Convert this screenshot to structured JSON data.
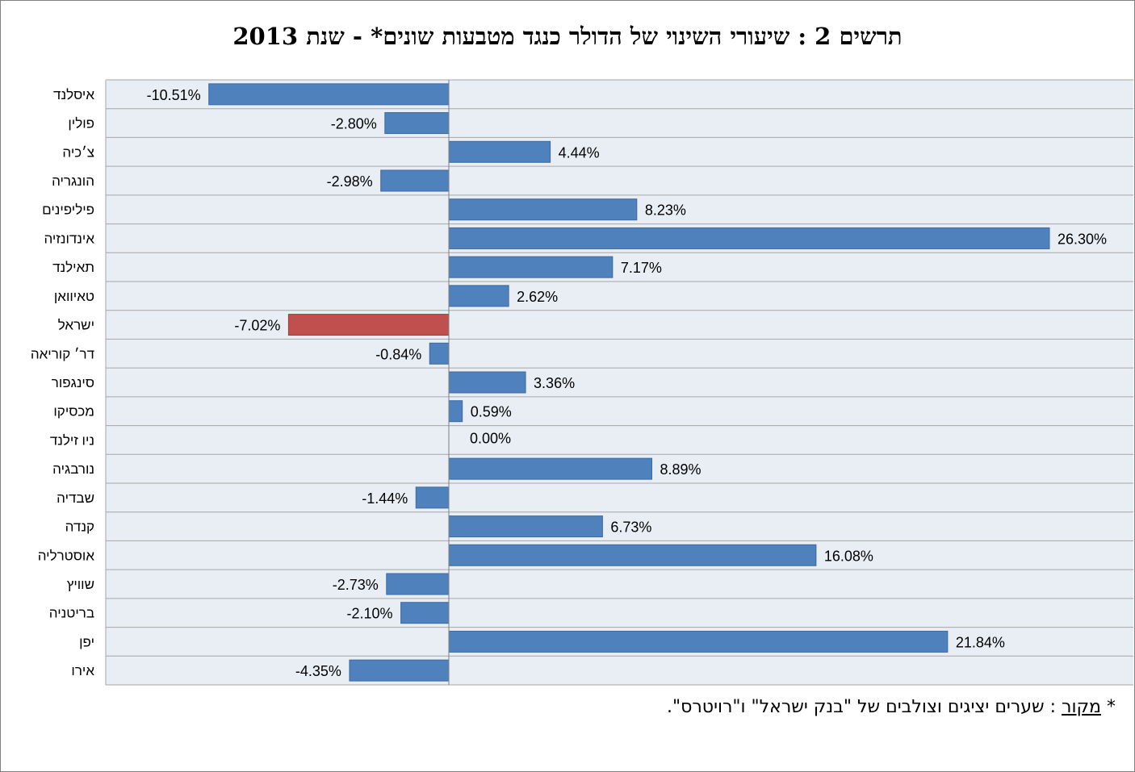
{
  "chart_data": {
    "type": "bar",
    "orientation": "horizontal",
    "title": "תרשים 2 : שיעורי השינוי של הדולר כנגד מטבעות שונים* - שנת 2013",
    "categories": [
      "איסלנד",
      "פולין",
      "צ׳כיה",
      "הונגריה",
      "פיליפינים",
      "אינדונזיה",
      "תאילנד",
      "טאיוואן",
      "ישראל",
      "דר׳ קוריאה",
      "סינגפור",
      "מכסיקו",
      "ניו זילנד",
      "נורבגיה",
      "שבדיה",
      "קנדה",
      "אוסטרליה",
      "שוויץ",
      "בריטניה",
      "יפן",
      "אירו"
    ],
    "values": [
      -10.51,
      -2.8,
      4.44,
      -2.98,
      8.23,
      26.3,
      7.17,
      2.62,
      -7.02,
      -0.84,
      3.36,
      0.59,
      0.0,
      8.89,
      -1.44,
      6.73,
      16.08,
      -2.73,
      -2.1,
      21.84,
      -4.35
    ],
    "data_labels": [
      "-10.51%",
      "-2.80%",
      "4.44%",
      "-2.98%",
      "8.23%",
      "26.30%",
      "7.17%",
      "2.62%",
      "-7.02%",
      "-0.84%",
      "3.36%",
      "0.59%",
      "0.00%",
      "8.89%",
      "-1.44%",
      "6.73%",
      "16.08%",
      "-2.73%",
      "-2.10%",
      "21.84%",
      "-4.35%"
    ],
    "highlight_category": "ישראל",
    "xlim": [
      -15,
      30
    ],
    "grid": "horizontal-lines",
    "legend": "none",
    "colors": {
      "bar": "#4f81bd",
      "highlight": "#c0504d",
      "plot_background": "#e9eef5",
      "gridline": "#a6a6a6"
    }
  },
  "footnote": {
    "prefix": "* ",
    "source_label": "מקור",
    "text": " : שערים יציגים וצולבים של \"בנק ישראל\" ו\"רויטרס\"."
  }
}
